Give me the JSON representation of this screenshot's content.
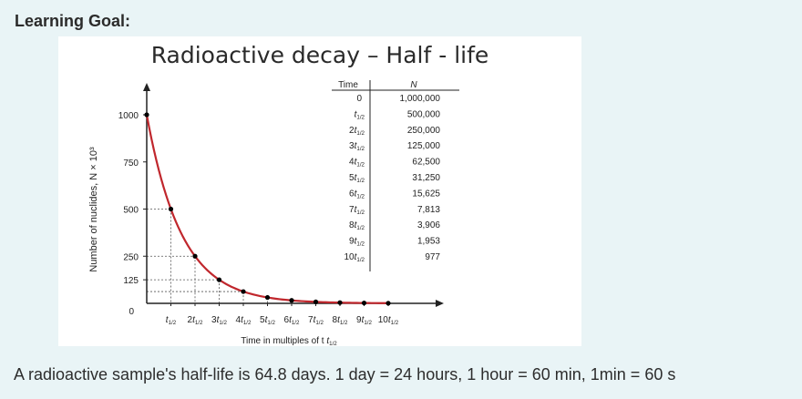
{
  "heading": "Learning Goal:",
  "figure": {
    "title": "Radioactive decay – Half - life",
    "ylabel": "Number of nuclides, N × 10³",
    "xlabel_prefix": "Time in multiples of t",
    "xlabel_sub": "1/2"
  },
  "table": {
    "header_time": "Time",
    "header_n": "N",
    "rows": [
      {
        "coef": "",
        "t": "0",
        "n": "1,000,000"
      },
      {
        "coef": "",
        "t": "t",
        "n": "500,000"
      },
      {
        "coef": "2",
        "t": "t",
        "n": "250,000"
      },
      {
        "coef": "3",
        "t": "t",
        "n": "125,000"
      },
      {
        "coef": "4",
        "t": "t",
        "n": "62,500"
      },
      {
        "coef": "5",
        "t": "t",
        "n": "31,250"
      },
      {
        "coef": "6",
        "t": "t",
        "n": "15,625"
      },
      {
        "coef": "7",
        "t": "t",
        "n": "7,813"
      },
      {
        "coef": "8",
        "t": "t",
        "n": "3,906"
      },
      {
        "coef": "9",
        "t": "t",
        "n": "1,953"
      },
      {
        "coef": "10",
        "t": "t",
        "n": "977"
      }
    ],
    "sub": "1/2"
  },
  "chart_data": {
    "type": "line",
    "x": [
      0,
      1,
      2,
      3,
      4,
      5,
      6,
      7,
      8,
      9,
      10
    ],
    "values": [
      1000,
      500,
      250,
      125,
      62.5,
      31.25,
      15.625,
      7.813,
      3.906,
      1.953,
      0.977
    ],
    "yticks": [
      "0",
      "125",
      "250",
      "500",
      "750",
      "1000"
    ],
    "ytick_values": [
      0,
      125,
      250,
      500,
      750,
      1000
    ],
    "xticks": [
      "",
      "2",
      "3",
      "4",
      "5",
      "6",
      "7",
      "8",
      "9",
      "10"
    ],
    "xtick_sub": "1/2",
    "ylim": [
      0,
      1000
    ],
    "curve_color": "#c0272d",
    "point_color": "#000000"
  },
  "footer": "A radioactive sample's half-life is 64.8 days. 1 day = 24 hours, 1 hour = 60 min, 1min = 60 s"
}
